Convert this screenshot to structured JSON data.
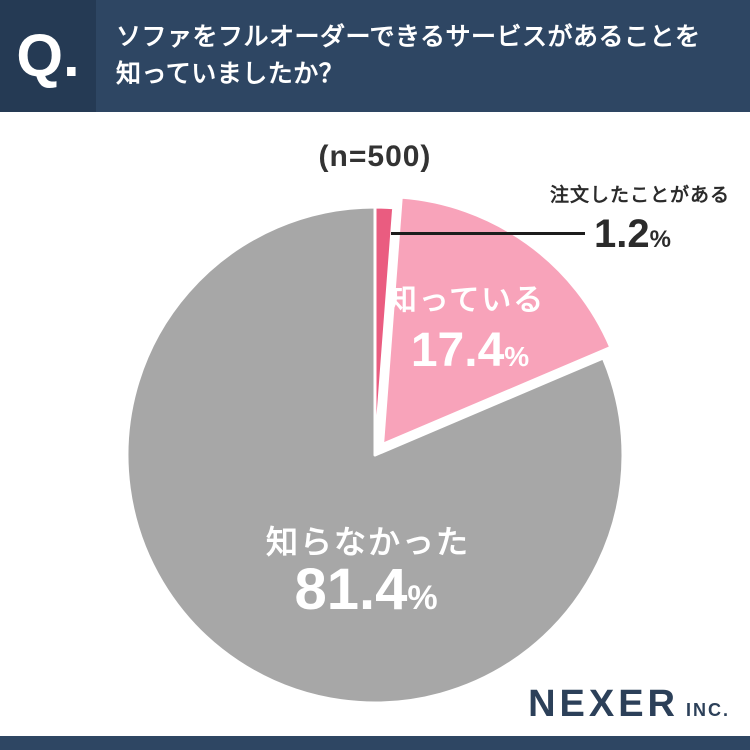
{
  "header": {
    "q_label": "Q.",
    "title_lines": [
      "ソファをフルオーダーできるサービスがあることを",
      "知っていましたか？"
    ]
  },
  "chart_data": {
    "type": "pie",
    "title": "(n=500)",
    "sample_size": 500,
    "unit": "%",
    "start_angle_deg": -90,
    "direction": "clockwise",
    "slices": [
      {
        "label": "注文したことがある",
        "value": 1.2,
        "color": "#ea5c80",
        "exploded": false,
        "label_position": "callout-right"
      },
      {
        "label": "知っている",
        "value": 17.4,
        "color": "#f8a3ba",
        "exploded": true,
        "label_position": "inside"
      },
      {
        "label": "知らなかった",
        "value": 81.4,
        "color": "#a7a7a7",
        "exploded": false,
        "label_position": "inside"
      }
    ]
  },
  "footer": {
    "brand": "NEXER",
    "brand_suffix": "INC."
  }
}
